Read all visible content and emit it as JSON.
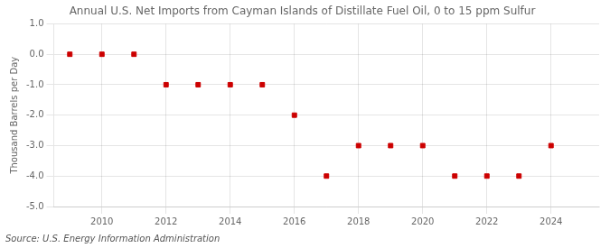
{
  "chart_data": {
    "type": "scatter",
    "title": "Annual U.S. Net Imports from Cayman Islands of Distillate Fuel Oil, 0 to 15 ppm Sulfur",
    "ylabel": "Thousand Barrels per Day",
    "source": "Source: U.S. Energy Information Administration",
    "x": [
      2009,
      2010,
      2011,
      2012,
      2013,
      2014,
      2015,
      2016,
      2017,
      2018,
      2019,
      2020,
      2021,
      2022,
      2023,
      2024
    ],
    "values": [
      0.0,
      0.0,
      0.0,
      -1.0,
      -1.0,
      -1.0,
      -1.0,
      -2.0,
      -4.0,
      -3.0,
      -3.0,
      -3.0,
      -4.0,
      -4.0,
      -4.0,
      -3.0
    ],
    "color": "#cc0000",
    "marker": "square",
    "xlim": [
      2008.5,
      2025.5
    ],
    "xticks": [
      2010,
      2012,
      2014,
      2016,
      2018,
      2020,
      2022,
      2024
    ],
    "ylim": [
      -5.0,
      1.0
    ],
    "yticks": [
      {
        "value": -5.0,
        "label": "-5.0"
      },
      {
        "value": -4.0,
        "label": "-4.0"
      },
      {
        "value": -3.0,
        "label": "-3.0"
      },
      {
        "value": -2.0,
        "label": "-2.0"
      },
      {
        "value": -1.0,
        "label": "-1.0"
      },
      {
        "value": 0.0,
        "label": "0.0"
      },
      {
        "value": 1.0,
        "label": "1.0"
      }
    ],
    "grid": true
  }
}
